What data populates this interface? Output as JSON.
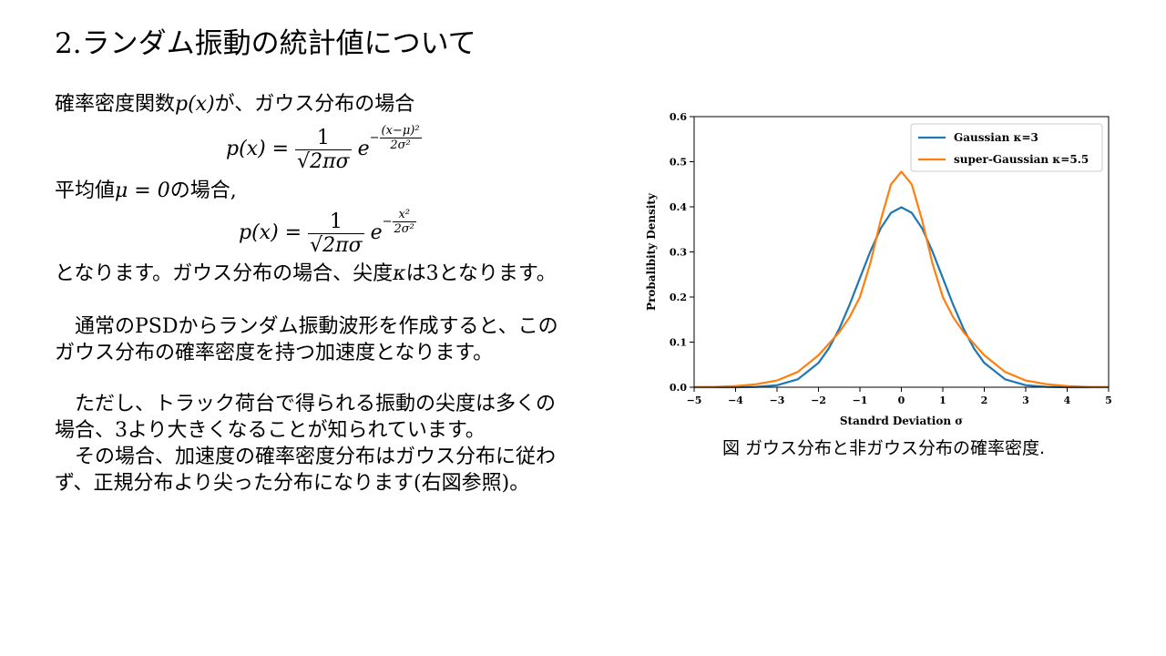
{
  "slide": {
    "title": "2.ランダム振動の統計値について"
  },
  "body": {
    "line1_prefix": "確率密度関数",
    "line1_math": "p(x)",
    "line1_suffix": "が、ガウス分布の場合",
    "formula1": {
      "lhs": "p(x) =",
      "num": "1",
      "den": "√2πσ",
      "base": "e",
      "exp_sign": "−",
      "exp_num": "(x−μ)²",
      "exp_den": "2σ²"
    },
    "line2_prefix": "平均値",
    "line2_math": "μ = 0",
    "line2_suffix": "の場合,",
    "formula2": {
      "lhs": "p(x) =",
      "num": "1",
      "den": "√2πσ",
      "base": "e",
      "exp_sign": "−",
      "exp_num": "x²",
      "exp_den": "2σ²"
    },
    "line3_prefix": "となります。ガウス分布の場合、尖度",
    "line3_math": "κ",
    "line3_suffix": "は3となります。",
    "para2_line1": "　通常のPSDからランダム振動波形を作成すると、この",
    "para2_line2": "ガウス分布の確率密度を持つ加速度となります。",
    "para3_line1": "　ただし、トラック荷台で得られる振動の尖度は多くの",
    "para3_line2": "場合、3より大きくなることが知られています。",
    "para3_line3": "　その場合、加速度の確率密度分布はガウス分布に従わ",
    "para3_line4": "ず、正規分布より尖った分布になります(右図参照)。"
  },
  "figure": {
    "caption": "図 ガウス分布と非ガウス分布の確率密度."
  },
  "chart_data": {
    "type": "line",
    "title": "",
    "xlabel": "Standrd Deviation σ",
    "ylabel": "Probalibity Density",
    "xlim": [
      -5,
      5
    ],
    "ylim": [
      0,
      0.6
    ],
    "xticks": [
      -5,
      -4,
      -3,
      -2,
      -1,
      0,
      1,
      2,
      3,
      4,
      5
    ],
    "xtick_labels": [
      "−5",
      "−4",
      "−3",
      "−2",
      "−1",
      "0",
      "1",
      "2",
      "3",
      "4",
      "5"
    ],
    "yticks": [
      0.0,
      0.1,
      0.2,
      0.3,
      0.4,
      0.5,
      0.6
    ],
    "ytick_labels": [
      "0.0",
      "0.1",
      "0.2",
      "0.3",
      "0.4",
      "0.5",
      "0.6"
    ],
    "grid": false,
    "legend_position": "top-right",
    "series": [
      {
        "name": "Gaussian κ=3",
        "color": "#1f77b4",
        "x": [
          -5,
          -4.5,
          -4,
          -3.5,
          -3,
          -2.5,
          -2,
          -1.75,
          -1.5,
          -1.25,
          -1,
          -0.75,
          -0.5,
          -0.25,
          0,
          0.25,
          0.5,
          0.75,
          1,
          1.25,
          1.5,
          1.75,
          2,
          2.5,
          3,
          3.5,
          4,
          4.5,
          5
        ],
        "y": [
          0.0,
          0.0,
          0.0001,
          0.0009,
          0.0044,
          0.0175,
          0.054,
          0.0863,
          0.1295,
          0.1826,
          0.242,
          0.3011,
          0.3521,
          0.3867,
          0.3989,
          0.3867,
          0.3521,
          0.3011,
          0.242,
          0.1826,
          0.1295,
          0.0863,
          0.054,
          0.0175,
          0.0044,
          0.0009,
          0.0001,
          0.0,
          0.0
        ]
      },
      {
        "name": "super-Gaussian κ=5.5",
        "color": "#ff7f0e",
        "x": [
          -5,
          -4.5,
          -4,
          -3.5,
          -3,
          -2.5,
          -2,
          -1.5,
          -1.25,
          -1,
          -0.75,
          -0.5,
          -0.25,
          0,
          0.25,
          0.5,
          0.75,
          1,
          1.25,
          1.5,
          2,
          2.5,
          3,
          3.5,
          4,
          4.5,
          5
        ],
        "y": [
          0.0003,
          0.0009,
          0.0027,
          0.0066,
          0.015,
          0.034,
          0.071,
          0.122,
          0.155,
          0.2,
          0.275,
          0.37,
          0.45,
          0.478,
          0.45,
          0.37,
          0.275,
          0.2,
          0.155,
          0.122,
          0.071,
          0.034,
          0.015,
          0.0066,
          0.0027,
          0.0009,
          0.0003
        ]
      }
    ]
  }
}
